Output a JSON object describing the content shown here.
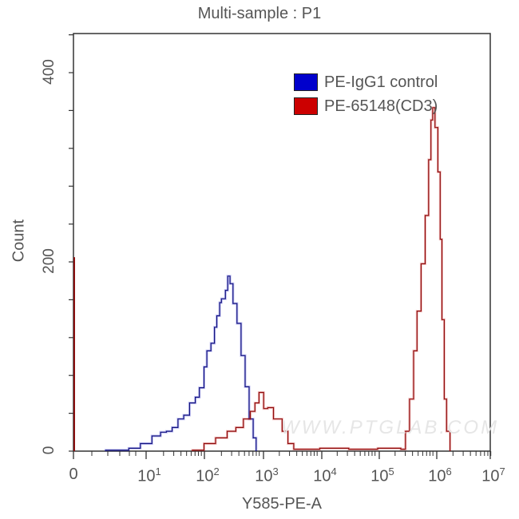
{
  "chart_data": {
    "type": "histogram-overlay",
    "title": "Multi-sample : P1",
    "xlabel": "Y585-PE-A",
    "ylabel": "Count",
    "xscale": "log (biexponential with 0)",
    "xticks": [
      {
        "label": "0",
        "exp": null
      },
      {
        "label": "10",
        "exp": "1"
      },
      {
        "label": "10",
        "exp": "2"
      },
      {
        "label": "10",
        "exp": "3"
      },
      {
        "label": "10",
        "exp": "4"
      },
      {
        "label": "10",
        "exp": "5"
      },
      {
        "label": "10",
        "exp": "6"
      },
      {
        "label": "10",
        "exp": "7"
      }
    ],
    "yticks": [
      "0",
      "200",
      "400"
    ],
    "ylim": [
      0,
      400
    ],
    "legend": {
      "position": "top-right",
      "entries": [
        "PE-IgG1 control",
        "PE-65148(CD3)"
      ]
    },
    "watermark": "WWW.PTGLAB.COM",
    "series": [
      {
        "name": "PE-IgG1 control",
        "color": "#0000cc",
        "points_log10_count": [
          [
            0.3,
            1
          ],
          [
            0.7,
            3
          ],
          [
            0.9,
            8
          ],
          [
            1.1,
            16
          ],
          [
            1.25,
            20
          ],
          [
            1.35,
            21
          ],
          [
            1.45,
            25
          ],
          [
            1.55,
            34
          ],
          [
            1.65,
            38
          ],
          [
            1.75,
            51
          ],
          [
            1.85,
            57
          ],
          [
            1.92,
            67
          ],
          [
            2.0,
            89
          ],
          [
            2.05,
            106
          ],
          [
            2.12,
            114
          ],
          [
            2.18,
            131
          ],
          [
            2.22,
            143
          ],
          [
            2.27,
            157
          ],
          [
            2.3,
            161
          ],
          [
            2.37,
            170
          ],
          [
            2.41,
            185
          ],
          [
            2.45,
            177
          ],
          [
            2.5,
            156
          ],
          [
            2.57,
            135
          ],
          [
            2.64,
            101
          ],
          [
            2.71,
            68
          ],
          [
            2.78,
            34
          ],
          [
            2.85,
            14
          ],
          [
            2.9,
            4
          ]
        ]
      },
      {
        "name": "PE-65148(CD3)",
        "color": "#cc0000",
        "zero_spike_count": 205,
        "points_log10_count": [
          [
            1.8,
            1
          ],
          [
            2.0,
            8
          ],
          [
            2.2,
            14
          ],
          [
            2.4,
            21
          ],
          [
            2.55,
            25
          ],
          [
            2.68,
            34
          ],
          [
            2.8,
            42
          ],
          [
            2.88,
            51
          ],
          [
            2.95,
            62
          ],
          [
            3.03,
            45
          ],
          [
            3.1,
            46
          ],
          [
            3.2,
            34
          ],
          [
            3.35,
            21
          ],
          [
            3.45,
            8
          ],
          [
            3.55,
            2
          ],
          [
            4.0,
            3
          ],
          [
            4.5,
            2
          ],
          [
            5.0,
            3
          ],
          [
            5.4,
            2
          ],
          [
            5.48,
            21
          ],
          [
            5.55,
            55
          ],
          [
            5.62,
            106
          ],
          [
            5.68,
            148
          ],
          [
            5.75,
            198
          ],
          [
            5.82,
            249
          ],
          [
            5.88,
            308
          ],
          [
            5.92,
            350
          ],
          [
            5.95,
            363
          ],
          [
            5.99,
            342
          ],
          [
            6.04,
            295
          ],
          [
            6.08,
            224
          ],
          [
            6.11,
            139
          ],
          [
            6.15,
            55
          ],
          [
            6.19,
            21
          ],
          [
            6.25,
            2
          ]
        ]
      }
    ]
  }
}
